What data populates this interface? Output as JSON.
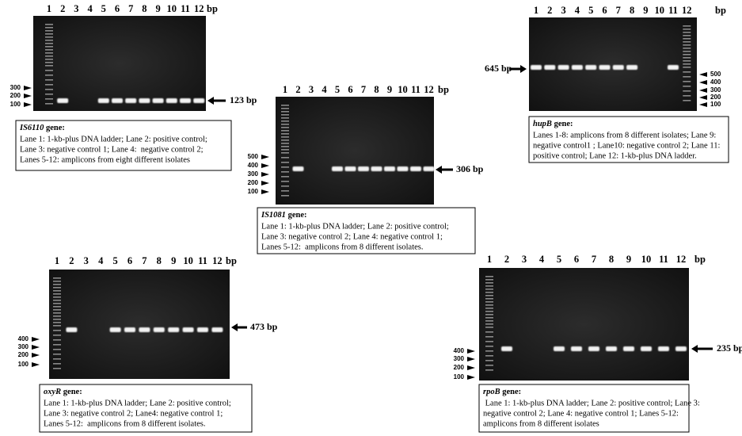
{
  "panels": [
    {
      "lanes": [
        "1",
        "2",
        "3",
        "4",
        "5",
        "6",
        "7",
        "8",
        "9",
        "10",
        "11",
        "12"
      ],
      "unit": "bp",
      "ladder": [
        "300",
        "200",
        "100"
      ],
      "band_label": "123 bp",
      "caption": {
        "gene": "IS6110",
        "suffix": " gene:",
        "lines": [
          "Lane 1: 1-kb-plus DNA ladder; Lane 2: positive control;",
          "Lane 3: negative control 1; Lane 4:  negative control 2;",
          "Lanes 5-12: amplicons from eight different isolates"
        ]
      }
    },
    {
      "lanes": [
        "1",
        "2",
        "3",
        "4",
        "5",
        "6",
        "7",
        "8",
        "9",
        "10",
        "11",
        "12"
      ],
      "unit": "bp",
      "ladder": [
        "500",
        "400",
        "300",
        "200",
        "100"
      ],
      "band_label": "306 bp",
      "caption": {
        "gene": "IS1081",
        "suffix": " gene:",
        "lines": [
          "Lane 1: 1-kb-plus DNA ladder; Lane 2: positive control;",
          "Lane 3: negative control 2; Lane 4: negative control 1;",
          "Lanes 5-12:  amplicons from 8 different isolates."
        ]
      }
    },
    {
      "lanes": [
        "1",
        "2",
        "3",
        "4",
        "5",
        "6",
        "7",
        "8",
        "9",
        "10",
        "11",
        "12"
      ],
      "unit": "bp",
      "ladder": [
        "500",
        "400",
        "300",
        "200",
        "100"
      ],
      "band_label": "645 bp",
      "caption": {
        "gene": "hupB",
        "suffix": " gene:",
        "lines": [
          "Lanes 1-8: amplicons from 8 different isolates; Lane 9:",
          "negative control1 ; Lane10: negative control 2; Lane 11:",
          "positive control; Lane 12: 1-kb-plus DNA ladder."
        ]
      }
    },
    {
      "lanes": [
        "1",
        "2",
        "3",
        "4",
        "5",
        "6",
        "7",
        "8",
        "9",
        "10",
        "11",
        "12"
      ],
      "unit": "bp",
      "ladder": [
        "400",
        "300",
        "200",
        "100"
      ],
      "band_label": "473 bp",
      "caption": {
        "gene": "oxyR",
        "suffix": " gene:",
        "lines": [
          "Lane 1: 1-kb-plus DNA ladder; Lane 2: positive control;",
          "Lane 3: negative control 2; Lane4: negative control 1;",
          "Lanes 5-12:  amplicons from 8 different isolates."
        ]
      }
    },
    {
      "lanes": [
        "1",
        "2",
        "3",
        "4",
        "5",
        "6",
        "7",
        "8",
        "9",
        "10",
        "11",
        "12"
      ],
      "unit": "bp",
      "ladder": [
        "400",
        "300",
        "200",
        "100"
      ],
      "band_label": "235 bp",
      "caption": {
        "gene": "rpoB",
        "suffix": " gene:",
        "lines": [
          " Lane 1: 1-kb-plus DNA ladder; Lane 2: positive control; Lane 3:",
          "negative control 2; Lane 4: negative control 1; Lanes 5-12:",
          "amplicons from 8 different isolates"
        ]
      }
    }
  ]
}
